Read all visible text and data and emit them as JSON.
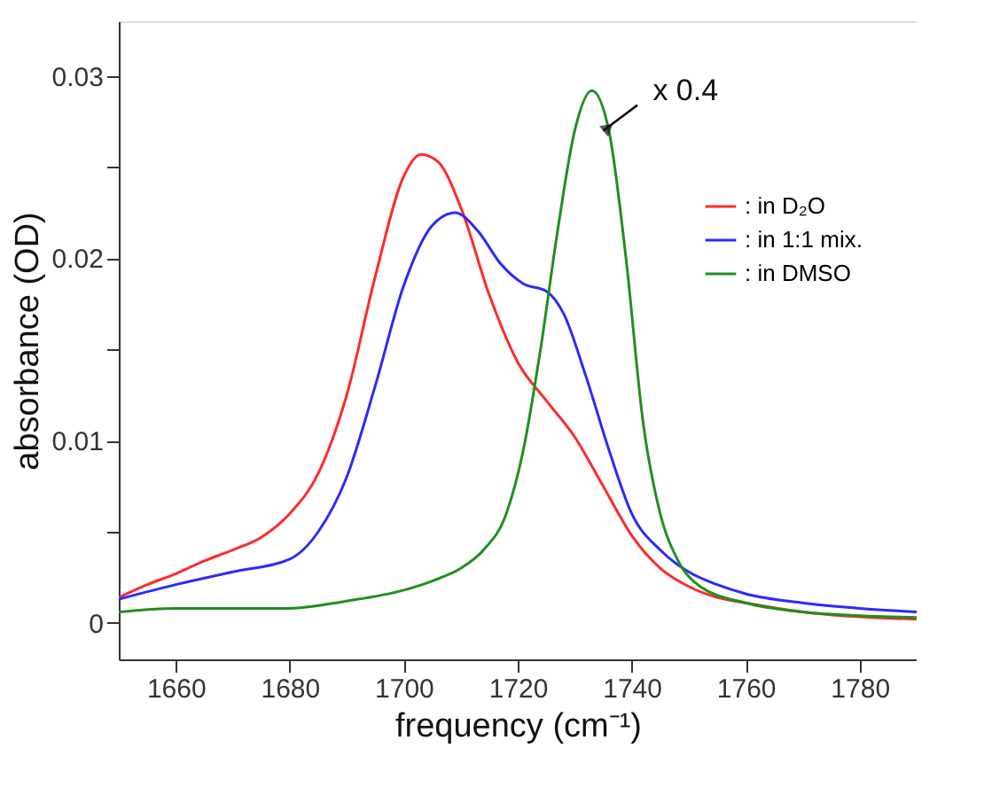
{
  "chart_data": {
    "type": "line",
    "xlabel": "frequency (cm⁻¹)",
    "ylabel": "absorbance (OD)",
    "xlim": [
      1650,
      1790
    ],
    "xticks": [
      1660,
      1680,
      1700,
      1720,
      1740,
      1760,
      1780
    ],
    "ylim": [
      -0.002,
      0.033
    ],
    "yticks": [
      0,
      {
        "value": 0.005,
        "label": null
      },
      0.01,
      {
        "value": 0.015,
        "label": null
      },
      0.02,
      {
        "value": 0.025,
        "label": null
      },
      0.03
    ],
    "grid": false,
    "legend": "right",
    "marker": "none",
    "line_style": "solid",
    "annotations": [
      {
        "text": "x 0.4",
        "x": 1735,
        "y": 0.027
      }
    ],
    "series": [
      {
        "name": ": in D₂O",
        "color": "#ff2a2a",
        "x": [
          1650,
          1655,
          1660,
          1665,
          1670,
          1675,
          1680,
          1685,
          1690,
          1695,
          1700,
          1703,
          1706,
          1710,
          1715,
          1720,
          1725,
          1730,
          1735,
          1740,
          1745,
          1750,
          1755,
          1760,
          1770,
          1790
        ],
        "values": [
          0.0014,
          0.0021,
          0.0027,
          0.0034,
          0.004,
          0.0047,
          0.006,
          0.0082,
          0.0125,
          0.019,
          0.0245,
          0.0257,
          0.0253,
          0.0228,
          0.018,
          0.0143,
          0.0122,
          0.0102,
          0.0075,
          0.0048,
          0.003,
          0.002,
          0.0014,
          0.0011,
          0.0006,
          0.0002
        ]
      },
      {
        "name": ": in 1:1 mix.",
        "color": "#2a2aff",
        "x": [
          1650,
          1660,
          1670,
          1680,
          1685,
          1690,
          1695,
          1700,
          1705,
          1709,
          1713,
          1717,
          1721,
          1725,
          1728,
          1732,
          1736,
          1740,
          1745,
          1750,
          1755,
          1760,
          1770,
          1780,
          1790
        ],
        "values": [
          0.0013,
          0.0021,
          0.0028,
          0.0035,
          0.005,
          0.008,
          0.013,
          0.0185,
          0.0218,
          0.0225,
          0.0215,
          0.0197,
          0.0186,
          0.0182,
          0.017,
          0.0135,
          0.0095,
          0.006,
          0.004,
          0.0028,
          0.0021,
          0.0016,
          0.0011,
          0.0008,
          0.0006
        ]
      },
      {
        "name": ": in DMSO",
        "color": "#1f8f1f",
        "x": [
          1650,
          1660,
          1670,
          1680,
          1690,
          1700,
          1705,
          1710,
          1714,
          1718,
          1721,
          1724,
          1727,
          1730,
          1733,
          1736,
          1739,
          1742,
          1745,
          1748,
          1752,
          1760,
          1770,
          1780,
          1790
        ],
        "values": [
          0.0006,
          0.0008,
          0.0008,
          0.0008,
          0.0012,
          0.0018,
          0.0023,
          0.003,
          0.004,
          0.006,
          0.0095,
          0.015,
          0.0215,
          0.027,
          0.0292,
          0.027,
          0.02,
          0.011,
          0.006,
          0.0035,
          0.002,
          0.0011,
          0.0006,
          0.0004,
          0.0003
        ]
      }
    ]
  }
}
